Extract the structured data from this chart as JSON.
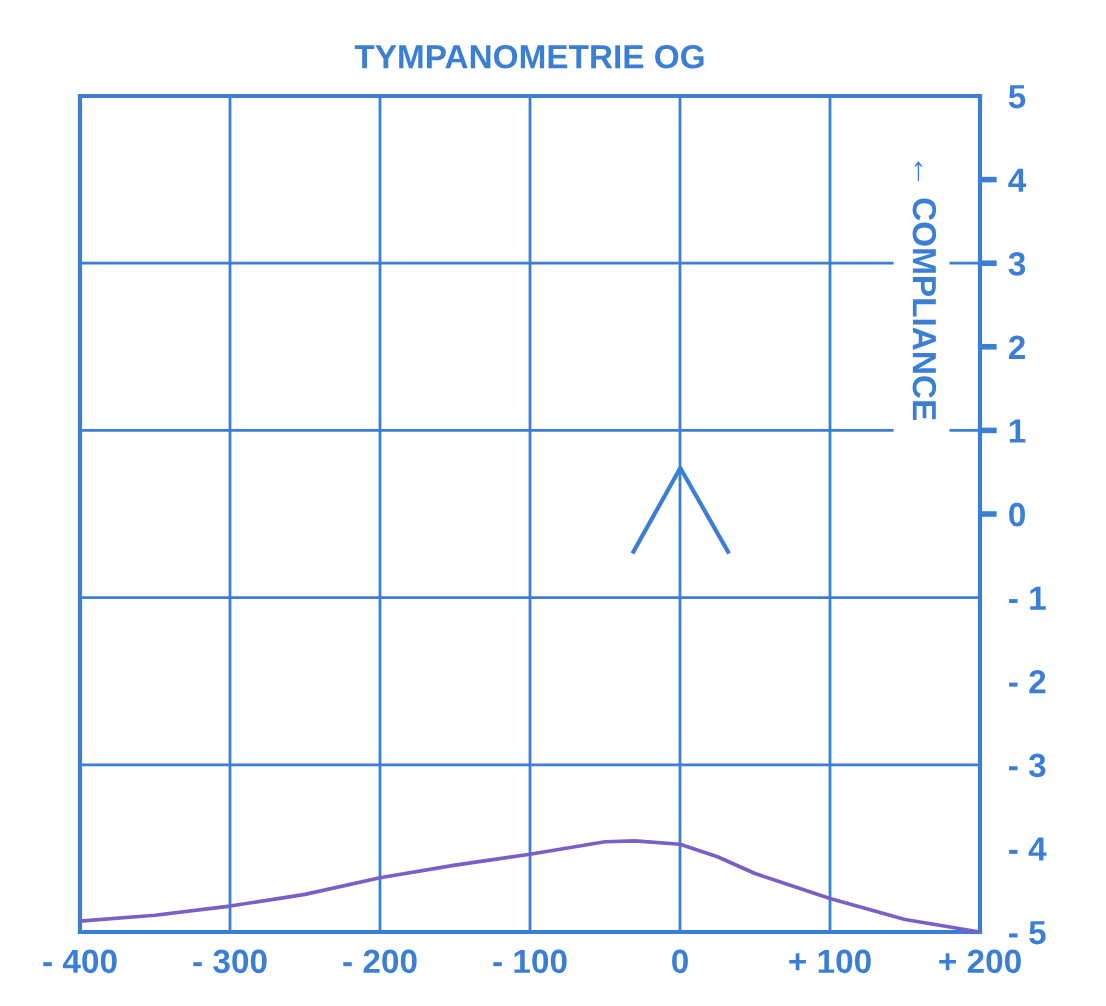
{
  "chart_data": {
    "type": "line",
    "title": "TYMPANOMETRIE OG",
    "ylabel": "← COMPLIANCE",
    "x": [
      -400,
      -350,
      -300,
      -250,
      -200,
      -150,
      -100,
      -50,
      -30,
      0,
      25,
      50,
      75,
      100,
      150,
      200
    ],
    "series": [
      {
        "color": "#7b5fc7",
        "values": [
          -4.87,
          -4.8,
          -4.69,
          -4.55,
          -4.35,
          -4.2,
          -4.07,
          -3.92,
          -3.91,
          -3.95,
          -4.1,
          -4.3,
          -4.45,
          -4.6,
          -4.85,
          -5.0
        ]
      }
    ],
    "xlim": [
      -400,
      200
    ],
    "ylim": [
      -5,
      5
    ],
    "xticks": [
      {
        "value": -400,
        "label": "- 400"
      },
      {
        "value": -300,
        "label": "- 300"
      },
      {
        "value": -200,
        "label": "- 200"
      },
      {
        "value": -100,
        "label": "- 100"
      },
      0,
      {
        "value": 100,
        "label": "+ 100"
      },
      {
        "value": 200,
        "label": "+ 200"
      }
    ],
    "yticks": [
      {
        "value": -5,
        "label": "- 5"
      },
      {
        "value": -4,
        "label": "- 4"
      },
      {
        "value": -3,
        "label": "- 3"
      },
      {
        "value": -2,
        "label": "- 2"
      },
      {
        "value": -1,
        "label": "- 1"
      },
      0,
      1,
      2,
      3,
      4,
      5
    ],
    "grid": true,
    "marker": "none",
    "line_style": "solid"
  }
}
